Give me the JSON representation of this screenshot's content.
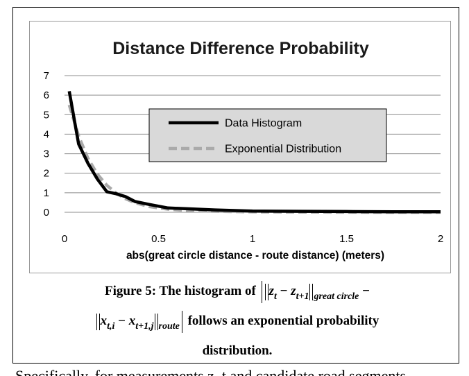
{
  "chart_data": {
    "type": "line",
    "title": "Distance Difference Probability",
    "xlabel": "abs(great circle distance - route distance)  (meters)",
    "ylabel": "",
    "xlim": [
      0,
      2
    ],
    "ylim": [
      0,
      7
    ],
    "x_ticks": [
      "0",
      "0.5",
      "1",
      "1.5",
      "2"
    ],
    "y_ticks": [
      "0",
      "1",
      "2",
      "3",
      "4",
      "5",
      "6",
      "7"
    ],
    "grid": "horizontal",
    "legend_position": "center-right",
    "series": [
      {
        "name": "Data Histogram",
        "color": "#000000",
        "style": "solid",
        "x": [
          0.025,
          0.075,
          0.125,
          0.175,
          0.225,
          0.275,
          0.325,
          0.375,
          0.45,
          0.55,
          0.65,
          0.8,
          1.0,
          1.25,
          1.5,
          1.75,
          2.0
        ],
        "y": [
          6.2,
          3.5,
          2.5,
          1.7,
          1.05,
          0.95,
          0.8,
          0.55,
          0.4,
          0.22,
          0.18,
          0.12,
          0.06,
          0.05,
          0.04,
          0.03,
          0.03
        ]
      },
      {
        "name": "Exponential Distribution",
        "color": "#aaaaaa",
        "style": "dashed",
        "x": [
          0.025,
          0.075,
          0.125,
          0.175,
          0.225,
          0.275,
          0.325,
          0.375,
          0.45,
          0.55,
          0.65,
          0.8,
          1.0,
          1.25,
          1.5,
          1.75,
          2.0
        ],
        "y": [
          5.5,
          3.9,
          2.75,
          1.95,
          1.38,
          0.98,
          0.69,
          0.49,
          0.29,
          0.16,
          0.09,
          0.05,
          0.02,
          0.01,
          0.005,
          0.0,
          0.0
        ]
      }
    ]
  },
  "caption": {
    "label": "Figure 5: The histogram of",
    "z_t": "z",
    "t": "t",
    "minus": "−",
    "t_plus_1": "t+1",
    "great_circle": "great circle",
    "x": "x",
    "t_i": "t,i",
    "t_plus_1_j": "t+1,j",
    "route": "route",
    "follows": "follows an exponential probability",
    "distribution": "distribution."
  },
  "body_text": "Specifically, for measurements z_t and candidate road segments"
}
